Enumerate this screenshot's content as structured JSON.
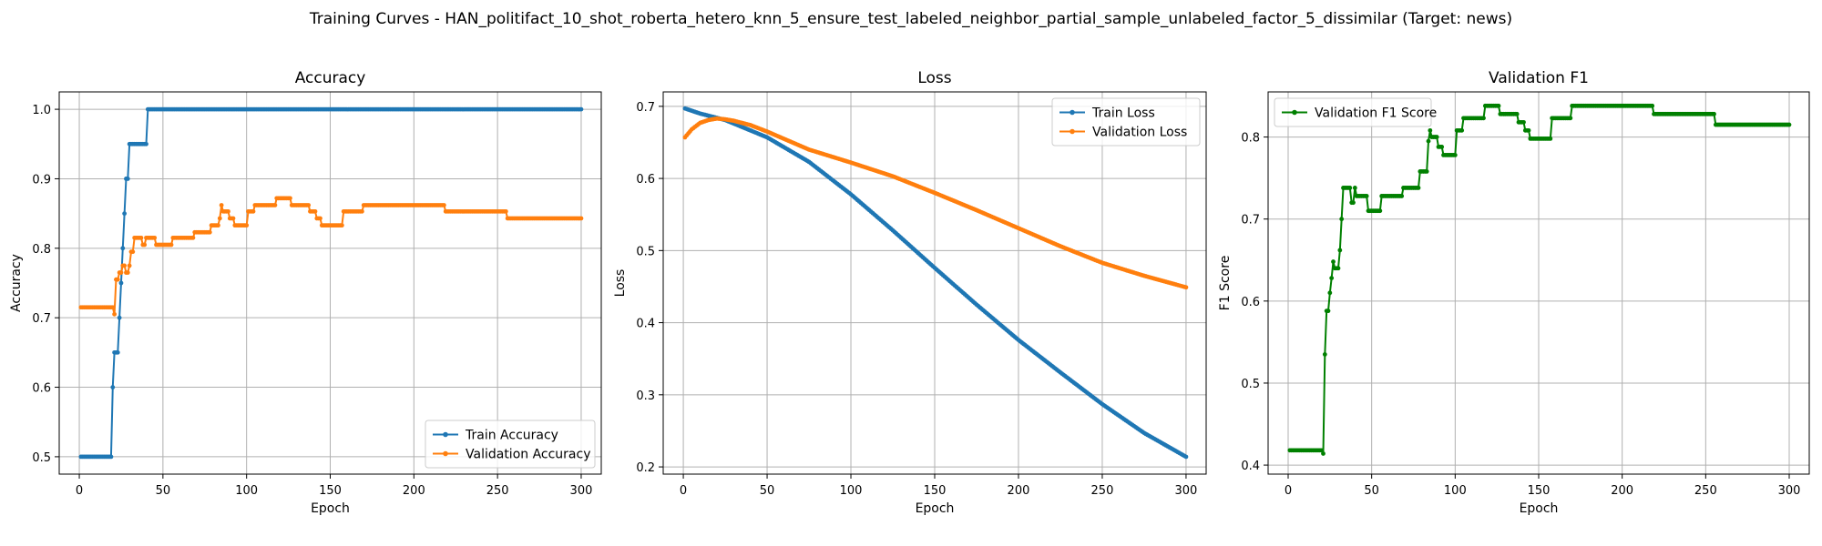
{
  "figure": {
    "title": "Training Curves - HAN_politifact_10_shot_roberta_hetero_knn_5_ensure_test_labeled_neighbor_partial_sample_unlabeled_factor_5_dissimilar (Target: news)"
  },
  "colors": {
    "blue": "#1f77b4",
    "orange": "#ff7f0e",
    "green": "#008000"
  },
  "chart_data": [
    {
      "type": "line",
      "title": "Accuracy",
      "xlabel": "Epoch",
      "ylabel": "Accuracy",
      "xlim": [
        -12,
        312
      ],
      "ylim": [
        0.475,
        1.025
      ],
      "xticks": [
        0,
        50,
        100,
        150,
        200,
        250,
        300
      ],
      "yticks": [
        0.5,
        0.6,
        0.7,
        0.8,
        0.9,
        1.0
      ],
      "ytick_labels": [
        "0.5",
        "0.6",
        "0.7",
        "0.8",
        "0.9",
        "1.0"
      ],
      "grid": true,
      "legend": "bottom-right",
      "series": [
        {
          "name": "Train Accuracy",
          "color": "#1f77b4",
          "points": [
            [
              1,
              0.5
            ],
            [
              19,
              0.5
            ],
            [
              20,
              0.6
            ],
            [
              21,
              0.65
            ],
            [
              23,
              0.65
            ],
            [
              24,
              0.7
            ],
            [
              25,
              0.75
            ],
            [
              26,
              0.8
            ],
            [
              27,
              0.85
            ],
            [
              28,
              0.9
            ],
            [
              29,
              0.9
            ],
            [
              30,
              0.95
            ],
            [
              40,
              0.95
            ],
            [
              41,
              1.0
            ],
            [
              300,
              1.0
            ]
          ]
        },
        {
          "name": "Validation Accuracy",
          "color": "#ff7f0e",
          "points": [
            [
              1,
              0.715
            ],
            [
              20,
              0.715
            ],
            [
              21,
              0.705
            ],
            [
              22,
              0.755
            ],
            [
              24,
              0.765
            ],
            [
              26,
              0.775
            ],
            [
              28,
              0.765
            ],
            [
              30,
              0.775
            ],
            [
              31,
              0.795
            ],
            [
              33,
              0.815
            ],
            [
              37,
              0.815
            ],
            [
              38,
              0.805
            ],
            [
              40,
              0.815
            ],
            [
              45,
              0.815
            ],
            [
              46,
              0.805
            ],
            [
              55,
              0.805
            ],
            [
              56,
              0.815
            ],
            [
              68,
              0.815
            ],
            [
              69,
              0.823
            ],
            [
              78,
              0.823
            ],
            [
              79,
              0.833
            ],
            [
              83,
              0.833
            ],
            [
              84,
              0.843
            ],
            [
              85,
              0.862
            ],
            [
              86,
              0.853
            ],
            [
              89,
              0.853
            ],
            [
              90,
              0.843
            ],
            [
              92,
              0.843
            ],
            [
              93,
              0.833
            ],
            [
              100,
              0.833
            ],
            [
              101,
              0.853
            ],
            [
              104,
              0.853
            ],
            [
              105,
              0.862
            ],
            [
              117,
              0.862
            ],
            [
              118,
              0.872
            ],
            [
              126,
              0.872
            ],
            [
              127,
              0.862
            ],
            [
              137,
              0.862
            ],
            [
              138,
              0.853
            ],
            [
              141,
              0.853
            ],
            [
              142,
              0.843
            ],
            [
              144,
              0.843
            ],
            [
              145,
              0.833
            ],
            [
              157,
              0.833
            ],
            [
              158,
              0.853
            ],
            [
              169,
              0.853
            ],
            [
              170,
              0.862
            ],
            [
              218,
              0.862
            ],
            [
              219,
              0.853
            ],
            [
              255,
              0.853
            ],
            [
              256,
              0.843
            ],
            [
              300,
              0.843
            ]
          ]
        }
      ]
    },
    {
      "type": "line",
      "title": "Loss",
      "xlabel": "Epoch",
      "ylabel": "Loss",
      "xlim": [
        -12,
        312
      ],
      "ylim": [
        0.19,
        0.72
      ],
      "xticks": [
        0,
        50,
        100,
        150,
        200,
        250,
        300
      ],
      "yticks": [
        0.2,
        0.3,
        0.4,
        0.5,
        0.6,
        0.7
      ],
      "ytick_labels": [
        "0.2",
        "0.3",
        "0.4",
        "0.5",
        "0.6",
        "0.7"
      ],
      "grid": true,
      "legend": "top-right",
      "series": [
        {
          "name": "Train Loss",
          "color": "#1f77b4",
          "points": [
            [
              1,
              0.697
            ],
            [
              10,
              0.69
            ],
            [
              25,
              0.681
            ],
            [
              50,
              0.657
            ],
            [
              75,
              0.623
            ],
            [
              100,
              0.578
            ],
            [
              125,
              0.528
            ],
            [
              150,
              0.476
            ],
            [
              175,
              0.425
            ],
            [
              200,
              0.376
            ],
            [
              225,
              0.331
            ],
            [
              250,
              0.287
            ],
            [
              275,
              0.247
            ],
            [
              300,
              0.214
            ]
          ]
        },
        {
          "name": "Validation Loss",
          "color": "#ff7f0e",
          "points": [
            [
              1,
              0.657
            ],
            [
              5,
              0.668
            ],
            [
              10,
              0.677
            ],
            [
              15,
              0.681
            ],
            [
              20,
              0.683
            ],
            [
              25,
              0.682
            ],
            [
              30,
              0.68
            ],
            [
              40,
              0.674
            ],
            [
              50,
              0.665
            ],
            [
              75,
              0.64
            ],
            [
              100,
              0.622
            ],
            [
              125,
              0.603
            ],
            [
              150,
              0.58
            ],
            [
              175,
              0.556
            ],
            [
              200,
              0.531
            ],
            [
              225,
              0.506
            ],
            [
              250,
              0.483
            ],
            [
              275,
              0.465
            ],
            [
              300,
              0.449
            ]
          ]
        }
      ]
    },
    {
      "type": "line",
      "title": "Validation F1",
      "xlabel": "Epoch",
      "ylabel": "F1 Score",
      "xlim": [
        -12,
        312
      ],
      "ylim": [
        0.389,
        0.855
      ],
      "xticks": [
        0,
        50,
        100,
        150,
        200,
        250,
        300
      ],
      "yticks": [
        0.4,
        0.5,
        0.6,
        0.7,
        0.8
      ],
      "ytick_labels": [
        "0.4",
        "0.5",
        "0.6",
        "0.7",
        "0.8"
      ],
      "grid": true,
      "legend": "top-left",
      "series": [
        {
          "name": "Validation F1 Score",
          "color": "#008000",
          "points": [
            [
              1,
              0.418
            ],
            [
              20,
              0.418
            ],
            [
              21,
              0.414
            ],
            [
              22,
              0.535
            ],
            [
              23,
              0.588
            ],
            [
              24,
              0.588
            ],
            [
              25,
              0.61
            ],
            [
              26,
              0.628
            ],
            [
              27,
              0.648
            ],
            [
              28,
              0.64
            ],
            [
              30,
              0.64
            ],
            [
              31,
              0.662
            ],
            [
              32,
              0.7
            ],
            [
              33,
              0.738
            ],
            [
              37,
              0.738
            ],
            [
              38,
              0.72
            ],
            [
              40,
              0.738
            ],
            [
              41,
              0.728
            ],
            [
              47,
              0.728
            ],
            [
              48,
              0.71
            ],
            [
              55,
              0.71
            ],
            [
              56,
              0.728
            ],
            [
              68,
              0.728
            ],
            [
              69,
              0.738
            ],
            [
              78,
              0.738
            ],
            [
              79,
              0.758
            ],
            [
              83,
              0.758
            ],
            [
              84,
              0.795
            ],
            [
              85,
              0.808
            ],
            [
              86,
              0.8
            ],
            [
              89,
              0.8
            ],
            [
              90,
              0.788
            ],
            [
              92,
              0.788
            ],
            [
              93,
              0.778
            ],
            [
              100,
              0.778
            ],
            [
              101,
              0.808
            ],
            [
              104,
              0.808
            ],
            [
              105,
              0.823
            ],
            [
              117,
              0.823
            ],
            [
              118,
              0.838
            ],
            [
              126,
              0.838
            ],
            [
              127,
              0.828
            ],
            [
              137,
              0.828
            ],
            [
              138,
              0.818
            ],
            [
              141,
              0.818
            ],
            [
              142,
              0.808
            ],
            [
              144,
              0.808
            ],
            [
              145,
              0.798
            ],
            [
              157,
              0.798
            ],
            [
              158,
              0.823
            ],
            [
              169,
              0.823
            ],
            [
              170,
              0.838
            ],
            [
              218,
              0.838
            ],
            [
              219,
              0.828
            ],
            [
              255,
              0.828
            ],
            [
              256,
              0.815
            ],
            [
              300,
              0.815
            ]
          ]
        }
      ]
    }
  ]
}
